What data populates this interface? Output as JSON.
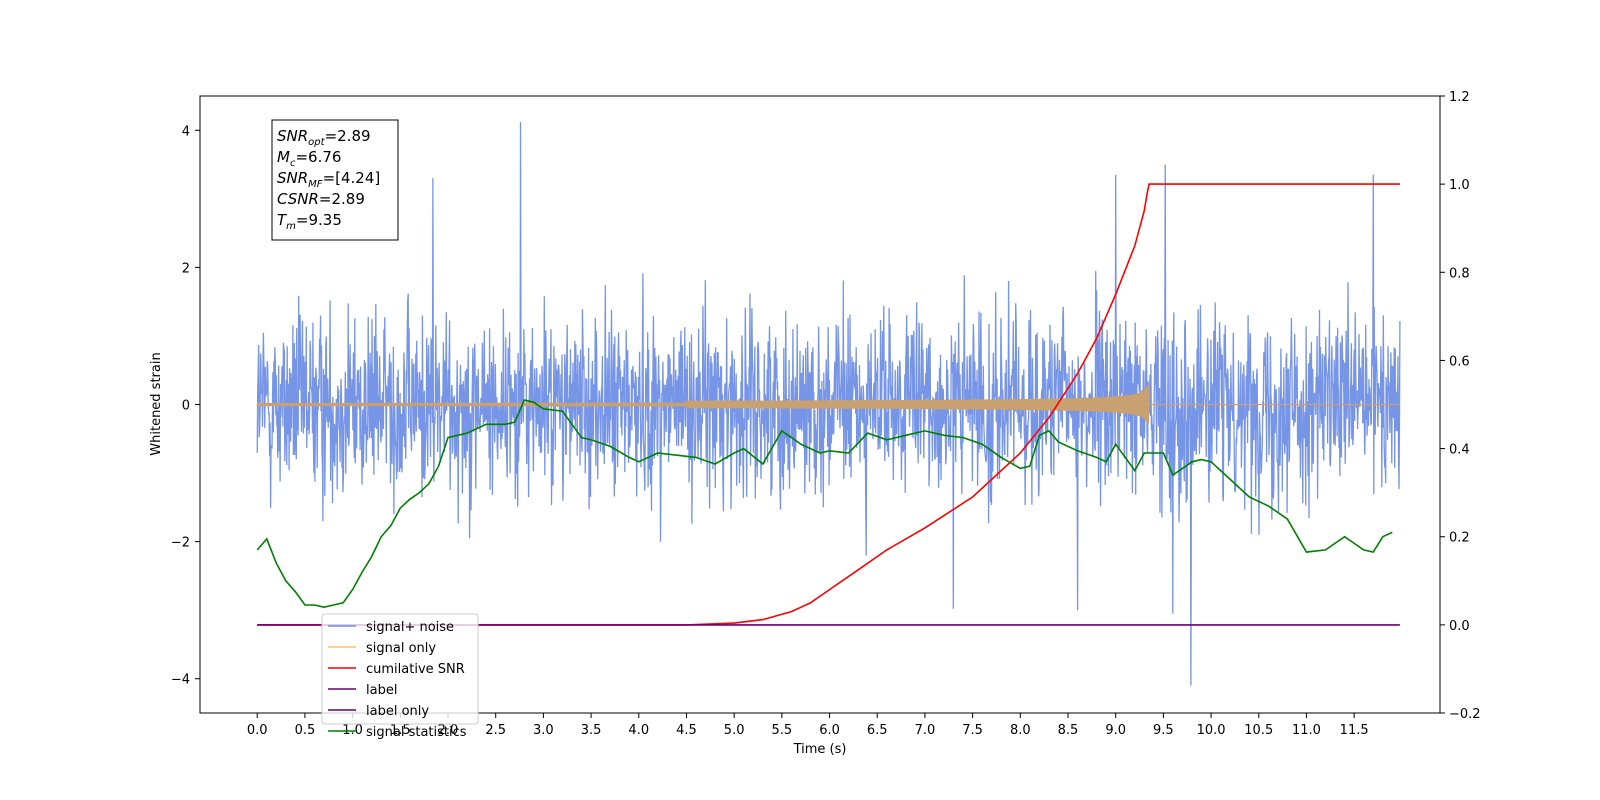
{
  "chart_data": {
    "type": "line",
    "xlabel": "Time (s)",
    "ylabel_left": "Whitened strain",
    "ylabel_right": "",
    "xlim": [
      -0.6,
      12.4
    ],
    "ylim_left": [
      -4.5,
      4.5
    ],
    "ylim_right": [
      -0.2,
      1.2
    ],
    "x_ticks": [
      "0.0",
      "0.5",
      "1.0",
      "1.5",
      "2.0",
      "2.5",
      "3.0",
      "3.5",
      "4.0",
      "4.5",
      "5.0",
      "5.5",
      "6.0",
      "6.5",
      "7.0",
      "7.5",
      "8.0",
      "8.5",
      "9.0",
      "9.5",
      "10.0",
      "10.5",
      "11.0",
      "11.5"
    ],
    "y_left_ticks": [
      "−4",
      "−2",
      "0",
      "2",
      "4"
    ],
    "y_right_ticks": [
      "−0.2",
      "0.0",
      "0.2",
      "0.4",
      "0.6",
      "0.8",
      "1.0",
      "1.2"
    ],
    "annotation": [
      {
        "sym": "SNR",
        "sub": "opt",
        "val": "=2.89"
      },
      {
        "sym": "M",
        "sub": "c",
        "val": "=6.76"
      },
      {
        "sym": "SNR",
        "sub": "MF",
        "val": "=[4.24]"
      },
      {
        "sym": "CSNR",
        "sub": "",
        "val": "=2.89"
      },
      {
        "sym": "T",
        "sub": "m",
        "val": "=9.35"
      }
    ],
    "legend_location": "lower-left",
    "series": [
      {
        "name": "signal+ noise",
        "axis": "left",
        "color": "#6f8fe6",
        "style": "noise band",
        "x_range": [
          0.0,
          11.98
        ],
        "typical_abs": 1.1,
        "spikes": [
          {
            "x": 2.76,
            "y": 4.12
          },
          {
            "x": 9.79,
            "y": -4.1
          },
          {
            "x": 9.52,
            "y": 3.5
          },
          {
            "x": 9.0,
            "y": 3.35
          },
          {
            "x": 11.7,
            "y": 3.35
          },
          {
            "x": 1.84,
            "y": 3.3
          },
          {
            "x": 9.6,
            "y": -3.05
          },
          {
            "x": 8.6,
            "y": -3.0
          },
          {
            "x": 7.3,
            "y": -2.98
          }
        ]
      },
      {
        "name": "signal only",
        "axis": "left",
        "color": "#c9a070",
        "style": "chirp",
        "x_range": [
          0.0,
          11.98
        ],
        "merger_time": 9.35,
        "peak_amplitude": 0.28
      },
      {
        "name": "cumilative SNR",
        "axis": "right",
        "color": "#ff0000",
        "x": [
          0.0,
          4.5,
          5.0,
          5.3,
          5.6,
          5.8,
          6.0,
          6.3,
          6.6,
          7.0,
          7.5,
          8.0,
          8.3,
          8.6,
          8.8,
          9.0,
          9.2,
          9.3,
          9.33,
          9.35,
          11.98
        ],
        "y": [
          0.0,
          0.0,
          0.004,
          0.012,
          0.03,
          0.05,
          0.08,
          0.125,
          0.17,
          0.22,
          0.29,
          0.39,
          0.47,
          0.57,
          0.65,
          0.75,
          0.86,
          0.94,
          0.98,
          1.0,
          1.0
        ]
      },
      {
        "name": "label",
        "axis": "right",
        "color": "#6b006b",
        "x": [
          0.0,
          11.98
        ],
        "y": [
          0.0,
          0.0
        ]
      },
      {
        "name": "label only",
        "axis": "right",
        "color": "#6b006b",
        "x": [],
        "y": []
      },
      {
        "name": "signal statistics",
        "axis": "right",
        "color": "#007f00",
        "x": [
          0.0,
          0.1,
          0.2,
          0.3,
          0.4,
          0.5,
          0.6,
          0.7,
          0.8,
          0.9,
          1.0,
          1.1,
          1.2,
          1.3,
          1.4,
          1.5,
          1.6,
          1.7,
          1.8,
          1.9,
          2.0,
          2.2,
          2.4,
          2.6,
          2.7,
          2.8,
          2.9,
          3.0,
          3.2,
          3.4,
          3.5,
          3.7,
          3.9,
          4.0,
          4.2,
          4.4,
          4.6,
          4.8,
          5.0,
          5.1,
          5.3,
          5.5,
          5.7,
          5.9,
          6.0,
          6.2,
          6.4,
          6.6,
          6.8,
          7.0,
          7.2,
          7.4,
          7.6,
          7.8,
          8.0,
          8.1,
          8.2,
          8.3,
          8.4,
          8.6,
          8.8,
          8.9,
          9.0,
          9.1,
          9.2,
          9.3,
          9.5,
          9.6,
          9.8,
          9.9,
          10.0,
          10.2,
          10.4,
          10.6,
          10.8,
          11.0,
          11.2,
          11.4,
          11.6,
          11.7,
          11.8,
          11.9
        ],
        "y": [
          0.17,
          0.195,
          0.14,
          0.1,
          0.075,
          0.045,
          0.045,
          0.04,
          0.045,
          0.05,
          0.08,
          0.12,
          0.155,
          0.2,
          0.225,
          0.265,
          0.285,
          0.3,
          0.32,
          0.36,
          0.425,
          0.435,
          0.455,
          0.455,
          0.46,
          0.51,
          0.505,
          0.49,
          0.485,
          0.425,
          0.42,
          0.405,
          0.38,
          0.37,
          0.39,
          0.385,
          0.38,
          0.365,
          0.39,
          0.4,
          0.365,
          0.44,
          0.41,
          0.39,
          0.395,
          0.39,
          0.435,
          0.42,
          0.43,
          0.44,
          0.43,
          0.425,
          0.41,
          0.38,
          0.355,
          0.36,
          0.43,
          0.44,
          0.415,
          0.395,
          0.38,
          0.37,
          0.41,
          0.38,
          0.35,
          0.39,
          0.39,
          0.34,
          0.37,
          0.375,
          0.37,
          0.33,
          0.29,
          0.27,
          0.24,
          0.165,
          0.17,
          0.2,
          0.17,
          0.165,
          0.2,
          0.21
        ]
      }
    ]
  }
}
